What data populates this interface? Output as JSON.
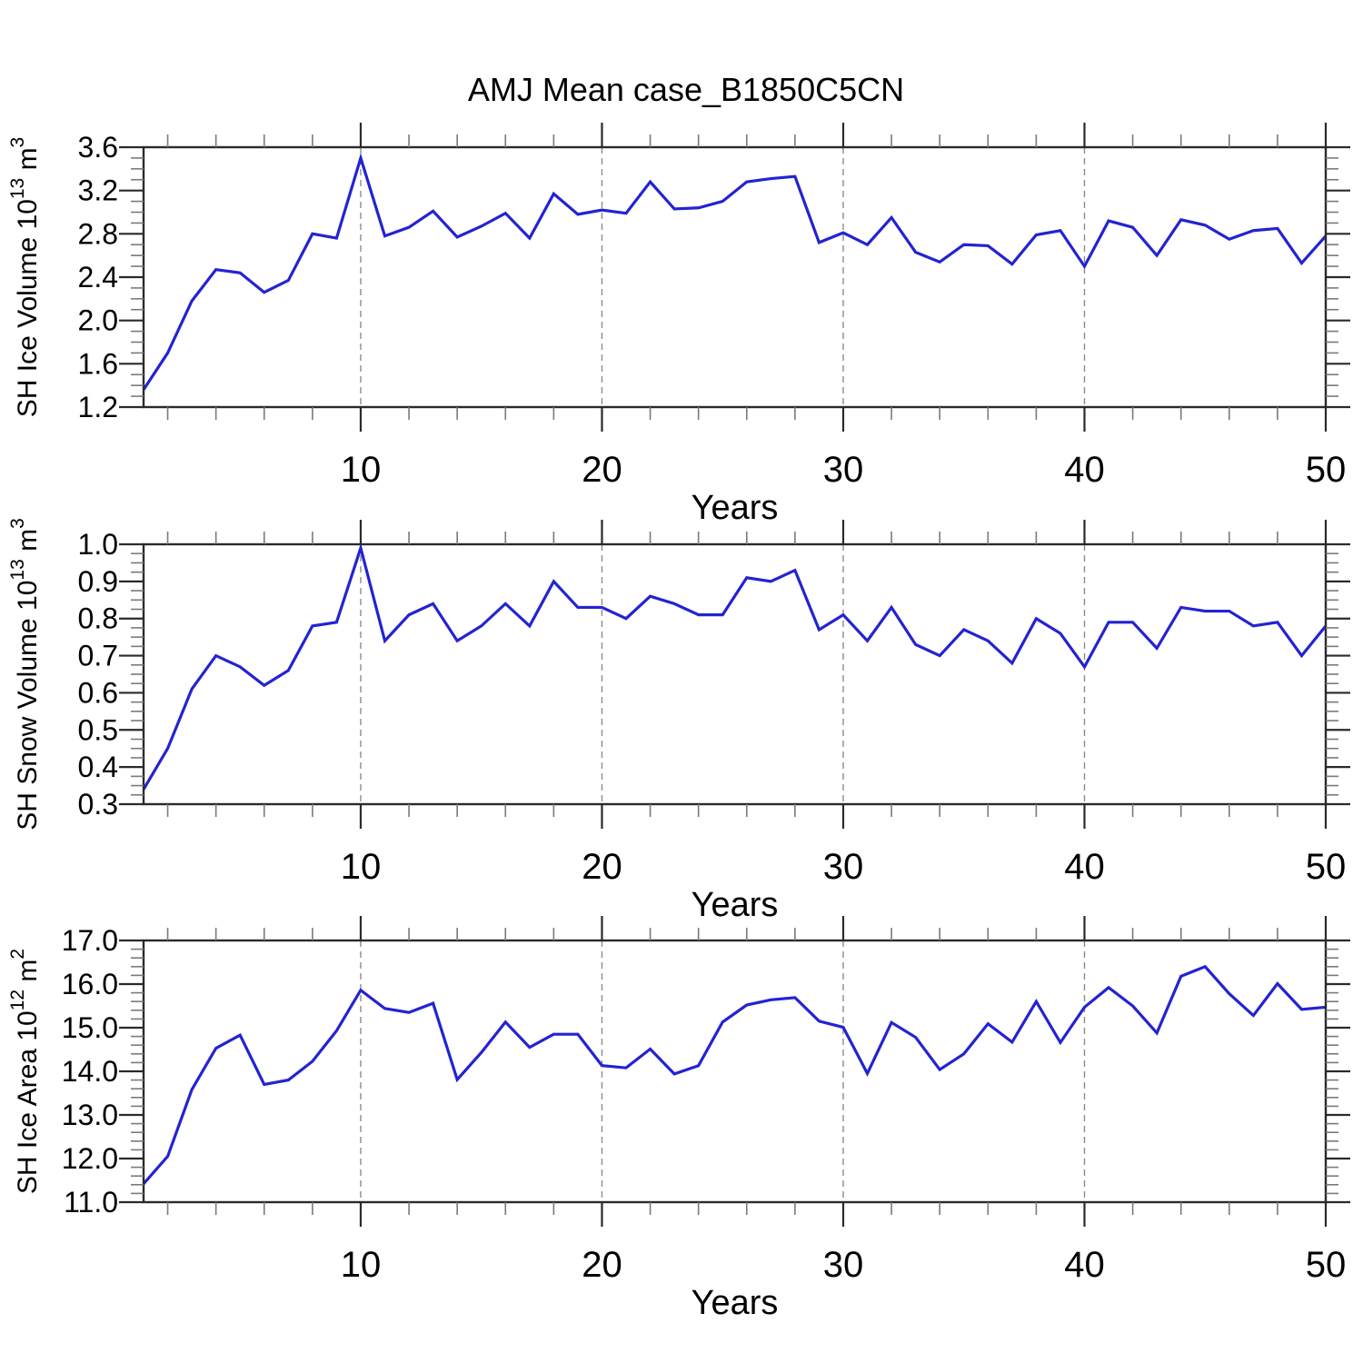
{
  "title": "AMJ Mean case_B1850C5CN",
  "colors": {
    "series_line": "#2323d2",
    "grid_dashed": "#8c8c8c",
    "frame": "#2a2a2a",
    "tick_major": "#2a2a2a",
    "tick_minor": "#7a7a7a",
    "text": "#000000"
  },
  "chart_data": [
    {
      "type": "line",
      "id": "sh-ice-volume",
      "xlabel": "Years",
      "ylabel_parts": [
        {
          "t": "SH Ice Volume 10"
        },
        {
          "t": "13",
          "sup": true
        },
        {
          "t": " m"
        },
        {
          "t": "3",
          "sup": true
        }
      ],
      "x_range": [
        1,
        50
      ],
      "x_step": 1,
      "values": [
        1.36,
        1.7,
        2.18,
        2.47,
        2.44,
        2.26,
        2.37,
        2.8,
        2.76,
        3.5,
        2.78,
        2.86,
        3.01,
        2.77,
        2.87,
        2.99,
        2.76,
        3.17,
        2.98,
        3.02,
        2.99,
        3.28,
        3.03,
        3.04,
        3.1,
        3.28,
        3.31,
        3.33,
        2.72,
        2.81,
        2.7,
        2.95,
        2.63,
        2.54,
        2.7,
        2.69,
        2.52,
        2.79,
        2.83,
        2.5,
        2.92,
        2.86,
        2.6,
        2.93,
        2.88,
        2.75,
        2.83,
        2.85,
        2.53,
        2.78
      ],
      "ylim": [
        1.2,
        3.6
      ],
      "ytick_major_step": 0.4,
      "ytick_minor_step": 0.1,
      "ytick_decimals": 1,
      "xticks_major": [
        10,
        20,
        30,
        40,
        50
      ],
      "xtick_minor_step": 2,
      "grid_x": [
        10,
        20,
        30,
        40
      ],
      "grid_style": "dashed-vertical",
      "legend": null
    },
    {
      "type": "line",
      "id": "sh-snow-volume",
      "xlabel": "Years",
      "ylabel_parts": [
        {
          "t": "SH Snow Volume 10"
        },
        {
          "t": "13",
          "sup": true
        },
        {
          "t": " m"
        },
        {
          "t": "3",
          "sup": true
        }
      ],
      "x_range": [
        1,
        50
      ],
      "x_step": 1,
      "values": [
        0.34,
        0.45,
        0.61,
        0.7,
        0.67,
        0.62,
        0.66,
        0.78,
        0.79,
        0.99,
        0.74,
        0.81,
        0.84,
        0.74,
        0.78,
        0.84,
        0.78,
        0.9,
        0.83,
        0.83,
        0.8,
        0.86,
        0.84,
        0.81,
        0.81,
        0.91,
        0.9,
        0.93,
        0.77,
        0.81,
        0.74,
        0.83,
        0.73,
        0.7,
        0.77,
        0.74,
        0.68,
        0.8,
        0.76,
        0.67,
        0.79,
        0.79,
        0.72,
        0.83,
        0.82,
        0.82,
        0.78,
        0.79,
        0.7,
        0.78
      ],
      "ylim": [
        0.3,
        1.0
      ],
      "ytick_major_step": 0.1,
      "ytick_minor_step": 0.025,
      "ytick_decimals": 1,
      "xticks_major": [
        10,
        20,
        30,
        40,
        50
      ],
      "xtick_minor_step": 2,
      "grid_x": [
        10,
        20,
        30,
        40
      ],
      "grid_style": "dashed-vertical",
      "legend": null
    },
    {
      "type": "line",
      "id": "sh-ice-area",
      "xlabel": "Years",
      "ylabel_parts": [
        {
          "t": "SH Ice Area 10"
        },
        {
          "t": "12",
          "sup": true
        },
        {
          "t": " m"
        },
        {
          "t": "2",
          "sup": true
        }
      ],
      "x_range": [
        1,
        50
      ],
      "x_step": 1,
      "values": [
        11.42,
        12.05,
        13.58,
        14.53,
        14.83,
        13.7,
        13.8,
        14.23,
        14.93,
        15.86,
        15.44,
        15.35,
        15.56,
        13.81,
        14.43,
        15.13,
        14.55,
        14.85,
        14.85,
        14.13,
        14.08,
        14.51,
        13.94,
        14.13,
        15.13,
        15.52,
        15.64,
        15.69,
        15.15,
        15.01,
        13.95,
        15.12,
        14.78,
        14.04,
        14.4,
        15.09,
        14.67,
        15.6,
        14.66,
        15.47,
        15.92,
        15.5,
        14.88,
        16.18,
        16.4,
        15.78,
        15.28,
        16.01,
        15.42,
        15.47
      ],
      "ylim": [
        11.0,
        17.0
      ],
      "ytick_major_step": 1.0,
      "ytick_minor_step": 0.2,
      "ytick_decimals": 1,
      "xticks_major": [
        10,
        20,
        30,
        40,
        50
      ],
      "xtick_minor_step": 2,
      "grid_x": [
        10,
        20,
        30,
        40
      ],
      "grid_style": "dashed-vertical",
      "legend": null
    }
  ]
}
